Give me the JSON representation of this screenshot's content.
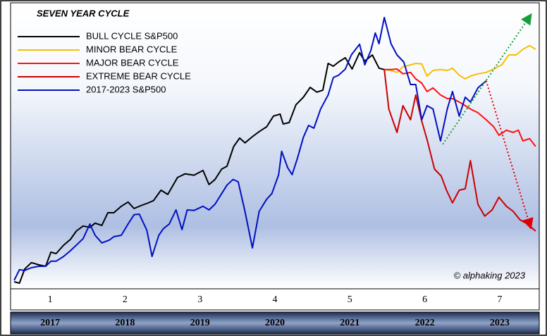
{
  "chart_data": {
    "type": "line",
    "title": "SEVEN YEAR CYCLE",
    "annotation": "© alphaking 2023",
    "xlim": [
      0,
      7
    ],
    "ylim": [
      0,
      100
    ],
    "xticks": [
      {
        "value": 0.5,
        "label": "1"
      },
      {
        "value": 1.5,
        "label": "2"
      },
      {
        "value": 2.5,
        "label": "3"
      },
      {
        "value": 3.5,
        "label": "4"
      },
      {
        "value": 4.5,
        "label": "5"
      },
      {
        "value": 5.5,
        "label": "6"
      },
      {
        "value": 6.5,
        "label": "7"
      }
    ],
    "year_ticks": [
      {
        "value": 0.5,
        "label": "2017"
      },
      {
        "value": 1.5,
        "label": "2018"
      },
      {
        "value": 2.5,
        "label": "2019"
      },
      {
        "value": 3.5,
        "label": "2020"
      },
      {
        "value": 4.5,
        "label": "2021"
      },
      {
        "value": 5.5,
        "label": "2022"
      },
      {
        "value": 6.5,
        "label": "2023"
      }
    ],
    "series": [
      {
        "name": "BULL CYCLE S&P500",
        "color": "#000000",
        "x": [
          0.02,
          0.09,
          0.16,
          0.25,
          0.35,
          0.44,
          0.51,
          0.58,
          0.68,
          0.77,
          0.85,
          0.94,
          1.03,
          1.1,
          1.19,
          1.27,
          1.35,
          1.45,
          1.54,
          1.62,
          1.71,
          1.81,
          1.88,
          1.98,
          2.07,
          2.2,
          2.3,
          2.42,
          2.54,
          2.62,
          2.7,
          2.79,
          2.86,
          2.95,
          3.03,
          3.1,
          3.2,
          3.29,
          3.39,
          3.48,
          3.57,
          3.61,
          3.69,
          3.78,
          3.88,
          3.97,
          4.06,
          4.14,
          4.21,
          4.28,
          4.35,
          4.44,
          4.53,
          4.63,
          4.7,
          4.8,
          4.89,
          4.96
        ],
        "values": [
          2.5,
          2,
          7,
          9.3,
          8.5,
          8,
          13,
          12.5,
          15.5,
          17.5,
          20.5,
          22.3,
          21.8,
          23.3,
          22.5,
          27,
          27,
          29.3,
          30.8,
          28.5,
          29.5,
          30.5,
          31.3,
          35,
          33.5,
          39.5,
          40.8,
          40.3,
          42,
          37,
          38.8,
          42.5,
          43.5,
          50.5,
          53.5,
          51.8,
          54,
          55.8,
          57.5,
          61.3,
          62,
          58.5,
          59,
          65.3,
          68,
          71.5,
          69.8,
          70.5,
          80,
          79,
          80.5,
          82,
          78,
          83.8,
          80.8,
          83,
          78.3,
          77.8
        ]
      },
      {
        "name": "MINOR BEAR CYCLE",
        "color": "#f5c000",
        "x": [
          4.96,
          5.05,
          5.13,
          5.21,
          5.31,
          5.38,
          5.46,
          5.53,
          5.61,
          5.71,
          5.8,
          5.87,
          5.96,
          6.04,
          6.11,
          6.21,
          6.32,
          6.42,
          6.53,
          6.62,
          6.72,
          6.81,
          6.9,
          6.98
        ],
        "values": [
          77.8,
          77.5,
          76.8,
          78.8,
          79.5,
          80,
          79.8,
          75.5,
          77.5,
          77.8,
          77.5,
          78.3,
          75.8,
          74.5,
          75.5,
          76.3,
          76.8,
          78,
          79.5,
          83,
          83,
          85,
          86.3,
          85
        ]
      },
      {
        "name": "MAJOR BEAR CYCLE",
        "color": "#ff1010",
        "x": [
          4.96,
          5.05,
          5.13,
          5.21,
          5.31,
          5.38,
          5.46,
          5.53,
          5.61,
          5.71,
          5.8,
          5.87,
          5.96,
          6.04,
          6.11,
          6.21,
          6.32,
          6.42,
          6.49,
          6.59,
          6.68,
          6.75,
          6.81,
          6.9,
          6.98
        ],
        "values": [
          77.8,
          77.8,
          78,
          76.3,
          76.8,
          74.5,
          73,
          70,
          71.3,
          68.8,
          67.5,
          67.5,
          66.3,
          65,
          63.8,
          62.5,
          60,
          57.5,
          54.5,
          56.3,
          55.5,
          56.3,
          52.5,
          53.3,
          50.5
        ]
      },
      {
        "name": "EXTREME BEAR CYCLE",
        "color": "#cc0000",
        "x": [
          4.96,
          5.02,
          5.13,
          5.21,
          5.31,
          5.38,
          5.46,
          5.53,
          5.63,
          5.72,
          5.79,
          5.87,
          5.96,
          6.04,
          6.11,
          6.21,
          6.3,
          6.4,
          6.49,
          6.59,
          6.68,
          6.77,
          6.87,
          6.98
        ],
        "values": [
          77.8,
          63.8,
          55.5,
          65,
          60,
          68.8,
          59.5,
          53,
          42.5,
          40,
          35,
          30.5,
          35,
          35.5,
          45.5,
          30,
          25.8,
          28,
          32.5,
          29.3,
          27.5,
          24.5,
          23,
          20.5
        ]
      },
      {
        "name": "2017-2023  S&P500",
        "color": "#0010c0",
        "x": [
          0.02,
          0.09,
          0.16,
          0.25,
          0.35,
          0.44,
          0.51,
          0.58,
          0.68,
          0.77,
          0.85,
          0.94,
          1.03,
          1.1,
          1.19,
          1.29,
          1.35,
          1.45,
          1.54,
          1.62,
          1.69,
          1.79,
          1.86,
          1.95,
          2.01,
          2.09,
          2.18,
          2.26,
          2.33,
          2.42,
          2.54,
          2.62,
          2.7,
          2.79,
          2.86,
          2.94,
          3.01,
          3.1,
          3.2,
          3.29,
          3.39,
          3.46,
          3.55,
          3.59,
          3.67,
          3.73,
          3.8,
          3.88,
          3.95,
          4.02,
          4.11,
          4.21,
          4.28,
          4.35,
          4.44,
          4.52,
          4.63,
          4.7,
          4.78,
          4.84,
          4.89,
          4.96,
          5.05,
          5.13,
          5.22,
          5.31,
          5.38,
          5.46,
          5.53,
          5.61,
          5.71,
          5.8,
          5.87,
          5.96,
          6.04,
          6.11,
          6.21,
          6.32
        ],
        "values": [
          3,
          6.8,
          6.5,
          7.5,
          8,
          8,
          9.8,
          9.8,
          11.5,
          13.5,
          15.5,
          17.8,
          23,
          19,
          16.3,
          17.3,
          18.5,
          19,
          23,
          26.3,
          26.5,
          20.8,
          11.5,
          19,
          21.3,
          23,
          28,
          21,
          28,
          27.8,
          29.3,
          28,
          30,
          33.8,
          36.8,
          38.8,
          38,
          27.5,
          14.5,
          27.5,
          31.8,
          33.8,
          40.5,
          48.8,
          43,
          40.5,
          46.3,
          53.8,
          58,
          57,
          63.8,
          68.8,
          75,
          75.8,
          78,
          83,
          86.8,
          79.5,
          84.5,
          90.8,
          87,
          96.3,
          87,
          83,
          80.5,
          72.5,
          72.5,
          60,
          65,
          63.8,
          52.5,
          63.8,
          70,
          61.3,
          68,
          66.3,
          71.3,
          73.8
        ]
      }
    ],
    "projections": [
      {
        "color": "#1a9e3a",
        "x": [
          5.74,
          6.91
        ],
        "values": [
          51.3,
          97
        ]
      },
      {
        "color": "#e00000",
        "x": [
          6.32,
          6.91
        ],
        "values": [
          73.8,
          22
        ]
      }
    ]
  }
}
